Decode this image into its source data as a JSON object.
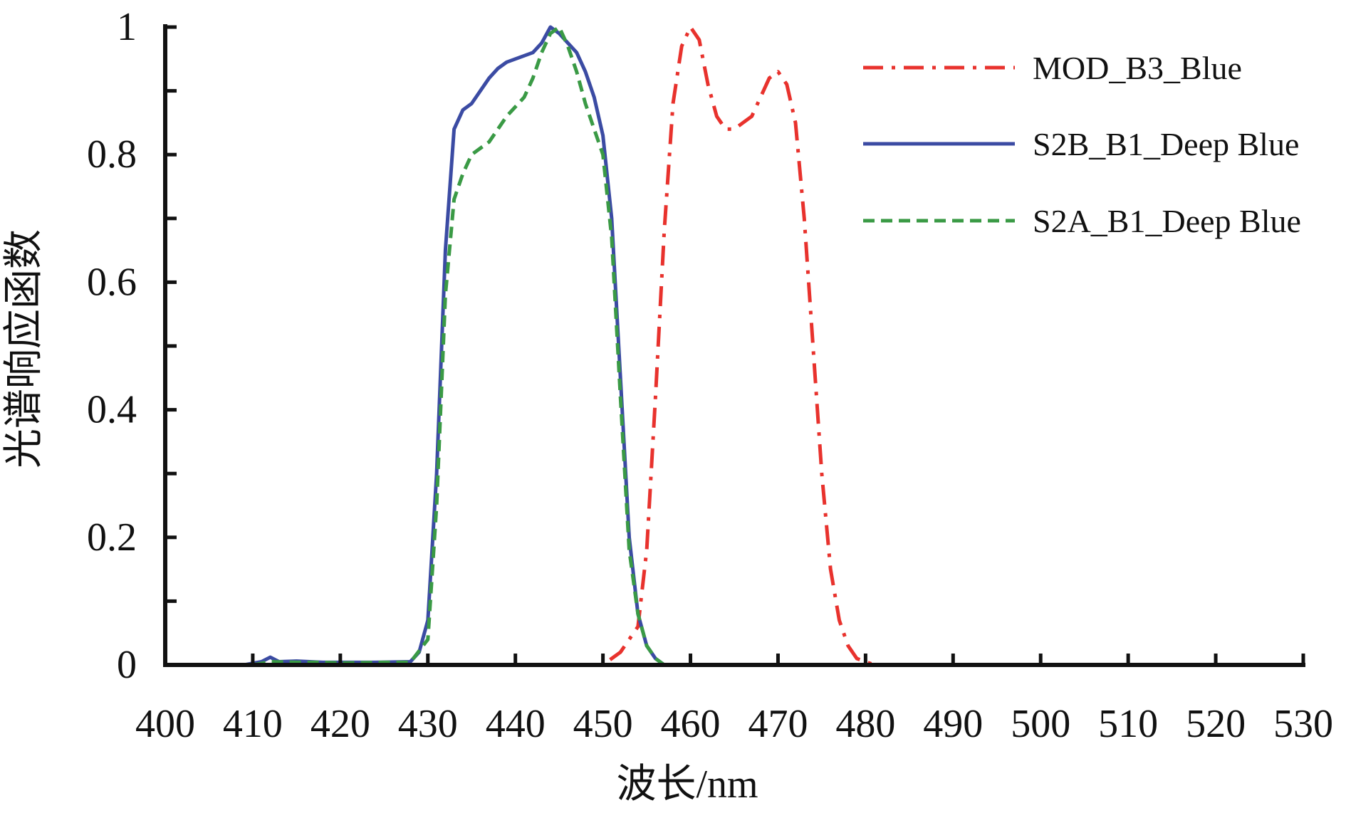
{
  "chart_data": {
    "type": "line",
    "xlabel": "波长/nm",
    "ylabel": "光谱响应函数",
    "xlim": [
      400,
      530
    ],
    "ylim": [
      0,
      1
    ],
    "x_ticks": [
      400,
      410,
      420,
      430,
      440,
      450,
      460,
      470,
      480,
      490,
      500,
      510,
      520,
      530
    ],
    "y_ticks": [
      0,
      0.2,
      0.4,
      0.6,
      0.8,
      1
    ],
    "y_tick_labels": [
      "0",
      "0.2",
      "0.4",
      "0.6",
      "0.8",
      "1"
    ],
    "grid": false,
    "legend_position": "top-right",
    "series": [
      {
        "name": "MOD_B3_Blue",
        "color": "#e8322d",
        "style": "dash-dot",
        "x": [
          400,
          450,
          452,
          454,
          455,
          456,
          457,
          458,
          459,
          460,
          461,
          462,
          463,
          464,
          465,
          466,
          467,
          468,
          469,
          470,
          471,
          472,
          473,
          474,
          475,
          476,
          477,
          478,
          479,
          480,
          481,
          483,
          490,
          500,
          510,
          520,
          530
        ],
        "y": [
          0,
          0,
          0.02,
          0.06,
          0.18,
          0.42,
          0.68,
          0.88,
          0.97,
          1.0,
          0.98,
          0.91,
          0.86,
          0.84,
          0.84,
          0.85,
          0.86,
          0.89,
          0.92,
          0.93,
          0.91,
          0.85,
          0.7,
          0.5,
          0.3,
          0.15,
          0.07,
          0.03,
          0.01,
          0.005,
          0,
          0,
          0,
          0,
          0,
          0,
          0
        ]
      },
      {
        "name": "S2B_B1_Deep Blue",
        "color": "#3b4ba3",
        "style": "solid",
        "x": [
          400,
          409,
          411,
          412,
          413,
          415,
          418,
          420,
          424,
          428,
          429,
          430,
          431,
          432,
          433,
          434,
          435,
          436,
          437,
          438,
          439,
          440,
          441,
          442,
          443,
          444,
          445,
          446,
          447,
          448,
          449,
          450,
          451,
          452,
          453,
          454,
          455,
          456,
          457,
          460,
          470,
          480,
          490,
          500,
          510,
          520,
          530
        ],
        "y": [
          0,
          0,
          0.005,
          0.012,
          0.005,
          0.006,
          0.004,
          0.004,
          0.004,
          0.005,
          0.02,
          0.07,
          0.3,
          0.65,
          0.84,
          0.87,
          0.88,
          0.9,
          0.92,
          0.935,
          0.945,
          0.95,
          0.955,
          0.96,
          0.975,
          1.0,
          0.99,
          0.975,
          0.96,
          0.93,
          0.89,
          0.83,
          0.7,
          0.45,
          0.2,
          0.08,
          0.03,
          0.01,
          0,
          0,
          0,
          0,
          0,
          0,
          0,
          0,
          0
        ]
      },
      {
        "name": "S2A_B1_Deep Blue",
        "color": "#3a9a45",
        "style": "dashed",
        "x": [
          400,
          410,
          412,
          415,
          418,
          420,
          425,
          428,
          430,
          431,
          432,
          433,
          434,
          435,
          436,
          437,
          438,
          439,
          440,
          441,
          442,
          443,
          444,
          445,
          446,
          447,
          448,
          449,
          450,
          451,
          452,
          453,
          454,
          455,
          456,
          457,
          460,
          470,
          480,
          490,
          500,
          510,
          520,
          530
        ],
        "y": [
          0,
          0,
          0.005,
          0.004,
          0.004,
          0.003,
          0.004,
          0.004,
          0.04,
          0.25,
          0.58,
          0.73,
          0.77,
          0.8,
          0.81,
          0.82,
          0.84,
          0.86,
          0.875,
          0.89,
          0.92,
          0.96,
          0.99,
          1.0,
          0.97,
          0.93,
          0.88,
          0.84,
          0.8,
          0.67,
          0.42,
          0.18,
          0.08,
          0.03,
          0.01,
          0,
          0,
          0,
          0,
          0,
          0,
          0,
          0,
          0
        ]
      }
    ]
  }
}
